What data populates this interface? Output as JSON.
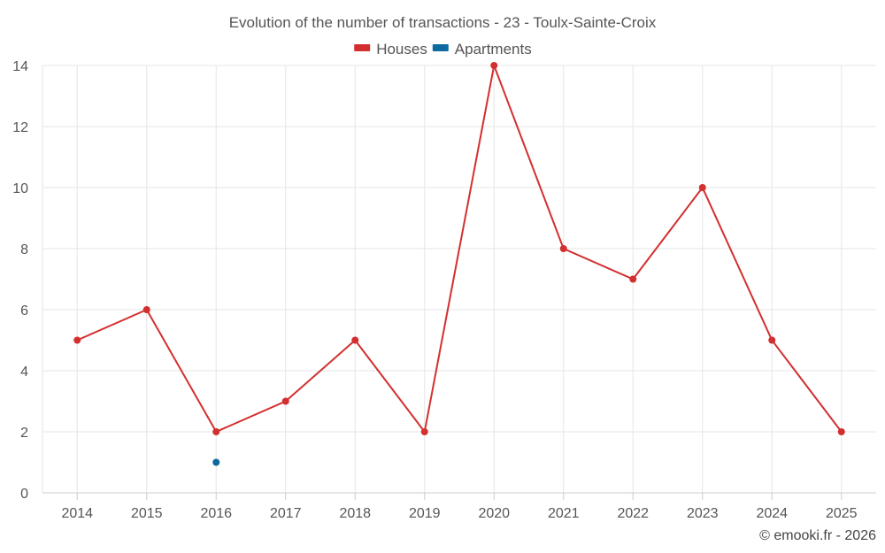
{
  "chart_data": {
    "type": "line",
    "title": "Evolution of the number of transactions - 23 - Toulx-Sainte-Croix",
    "categories": [
      "2014",
      "2015",
      "2016",
      "2017",
      "2018",
      "2019",
      "2020",
      "2021",
      "2022",
      "2023",
      "2024",
      "2025"
    ],
    "series": [
      {
        "name": "Houses",
        "color": "#d32f2f",
        "values": [
          5,
          6,
          2,
          3,
          5,
          2,
          14,
          8,
          7,
          10,
          5,
          2
        ]
      },
      {
        "name": "Apartments",
        "color": "#0d6aa0",
        "values": [
          null,
          null,
          1,
          null,
          null,
          null,
          null,
          null,
          null,
          null,
          null,
          null
        ]
      }
    ],
    "ylim": [
      0,
      14
    ],
    "yticks": [
      0,
      2,
      4,
      6,
      8,
      10,
      12,
      14
    ],
    "grid": true,
    "legend_position": "top-center",
    "xlabel": "",
    "ylabel": ""
  },
  "credit": "© emooki.fr - 2026"
}
